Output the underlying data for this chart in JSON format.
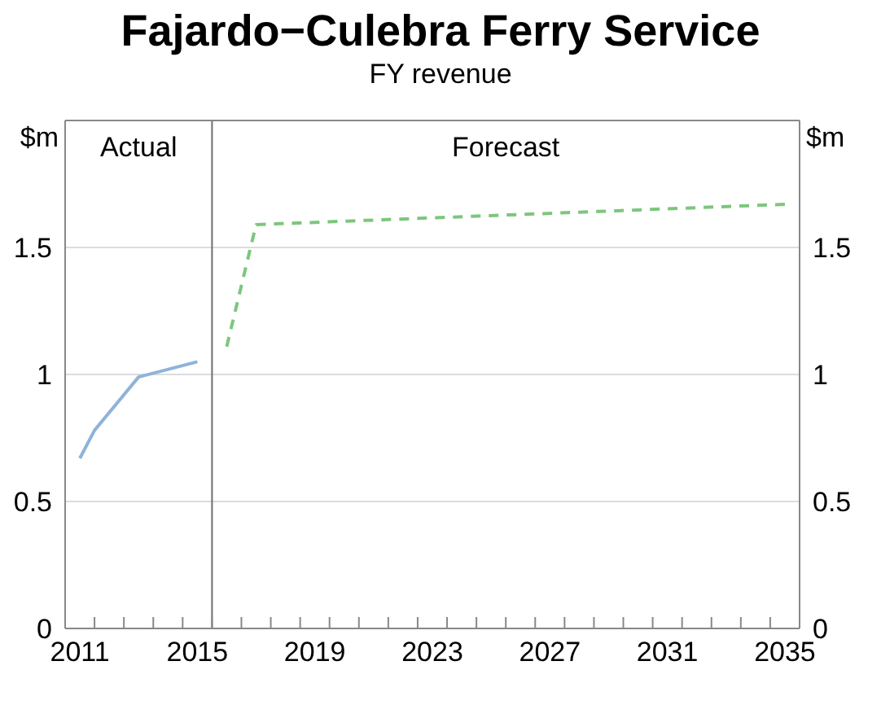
{
  "chart_data": {
    "type": "line",
    "title": "Fajardo−Culebra Ferry Service",
    "subtitle": "FY revenue",
    "ylabel": "$m",
    "y2label": "$m",
    "annotations": [
      "Actual",
      "Forecast"
    ],
    "xlim": [
      2011,
      2036
    ],
    "xticks": [
      {
        "value": 2011.5,
        "label": "2011"
      },
      {
        "value": 2015.5,
        "label": "2015"
      },
      {
        "value": 2019.5,
        "label": "2019"
      },
      {
        "value": 2023.5,
        "label": "2023"
      },
      {
        "value": 2027.5,
        "label": "2027"
      },
      {
        "value": 2031.5,
        "label": "2031"
      },
      {
        "value": 2035.5,
        "label": "2035"
      }
    ],
    "ylim": [
      0,
      2
    ],
    "yticks": [
      0,
      0.5,
      1,
      1.5
    ],
    "y2lim": [
      0,
      2
    ],
    "y2ticks": [
      0,
      0.5,
      1,
      1.5
    ],
    "grid": "y",
    "legend": false,
    "ref_lines": [
      {
        "axis": "x",
        "value": 2016,
        "color": "#6e6e6e"
      }
    ],
    "series": [
      {
        "color": "#8fb3d9",
        "line_style": "solid",
        "x": [
          2011.5,
          2012,
          2013.5,
          2015.5
        ],
        "values": [
          0.67,
          0.78,
          0.99,
          1.05
        ]
      },
      {
        "color": "#7dc67d",
        "line_style": "dashed",
        "x": [
          2016.5,
          2017.5,
          2035.5
        ],
        "values": [
          1.11,
          1.59,
          1.67
        ]
      }
    ]
  }
}
